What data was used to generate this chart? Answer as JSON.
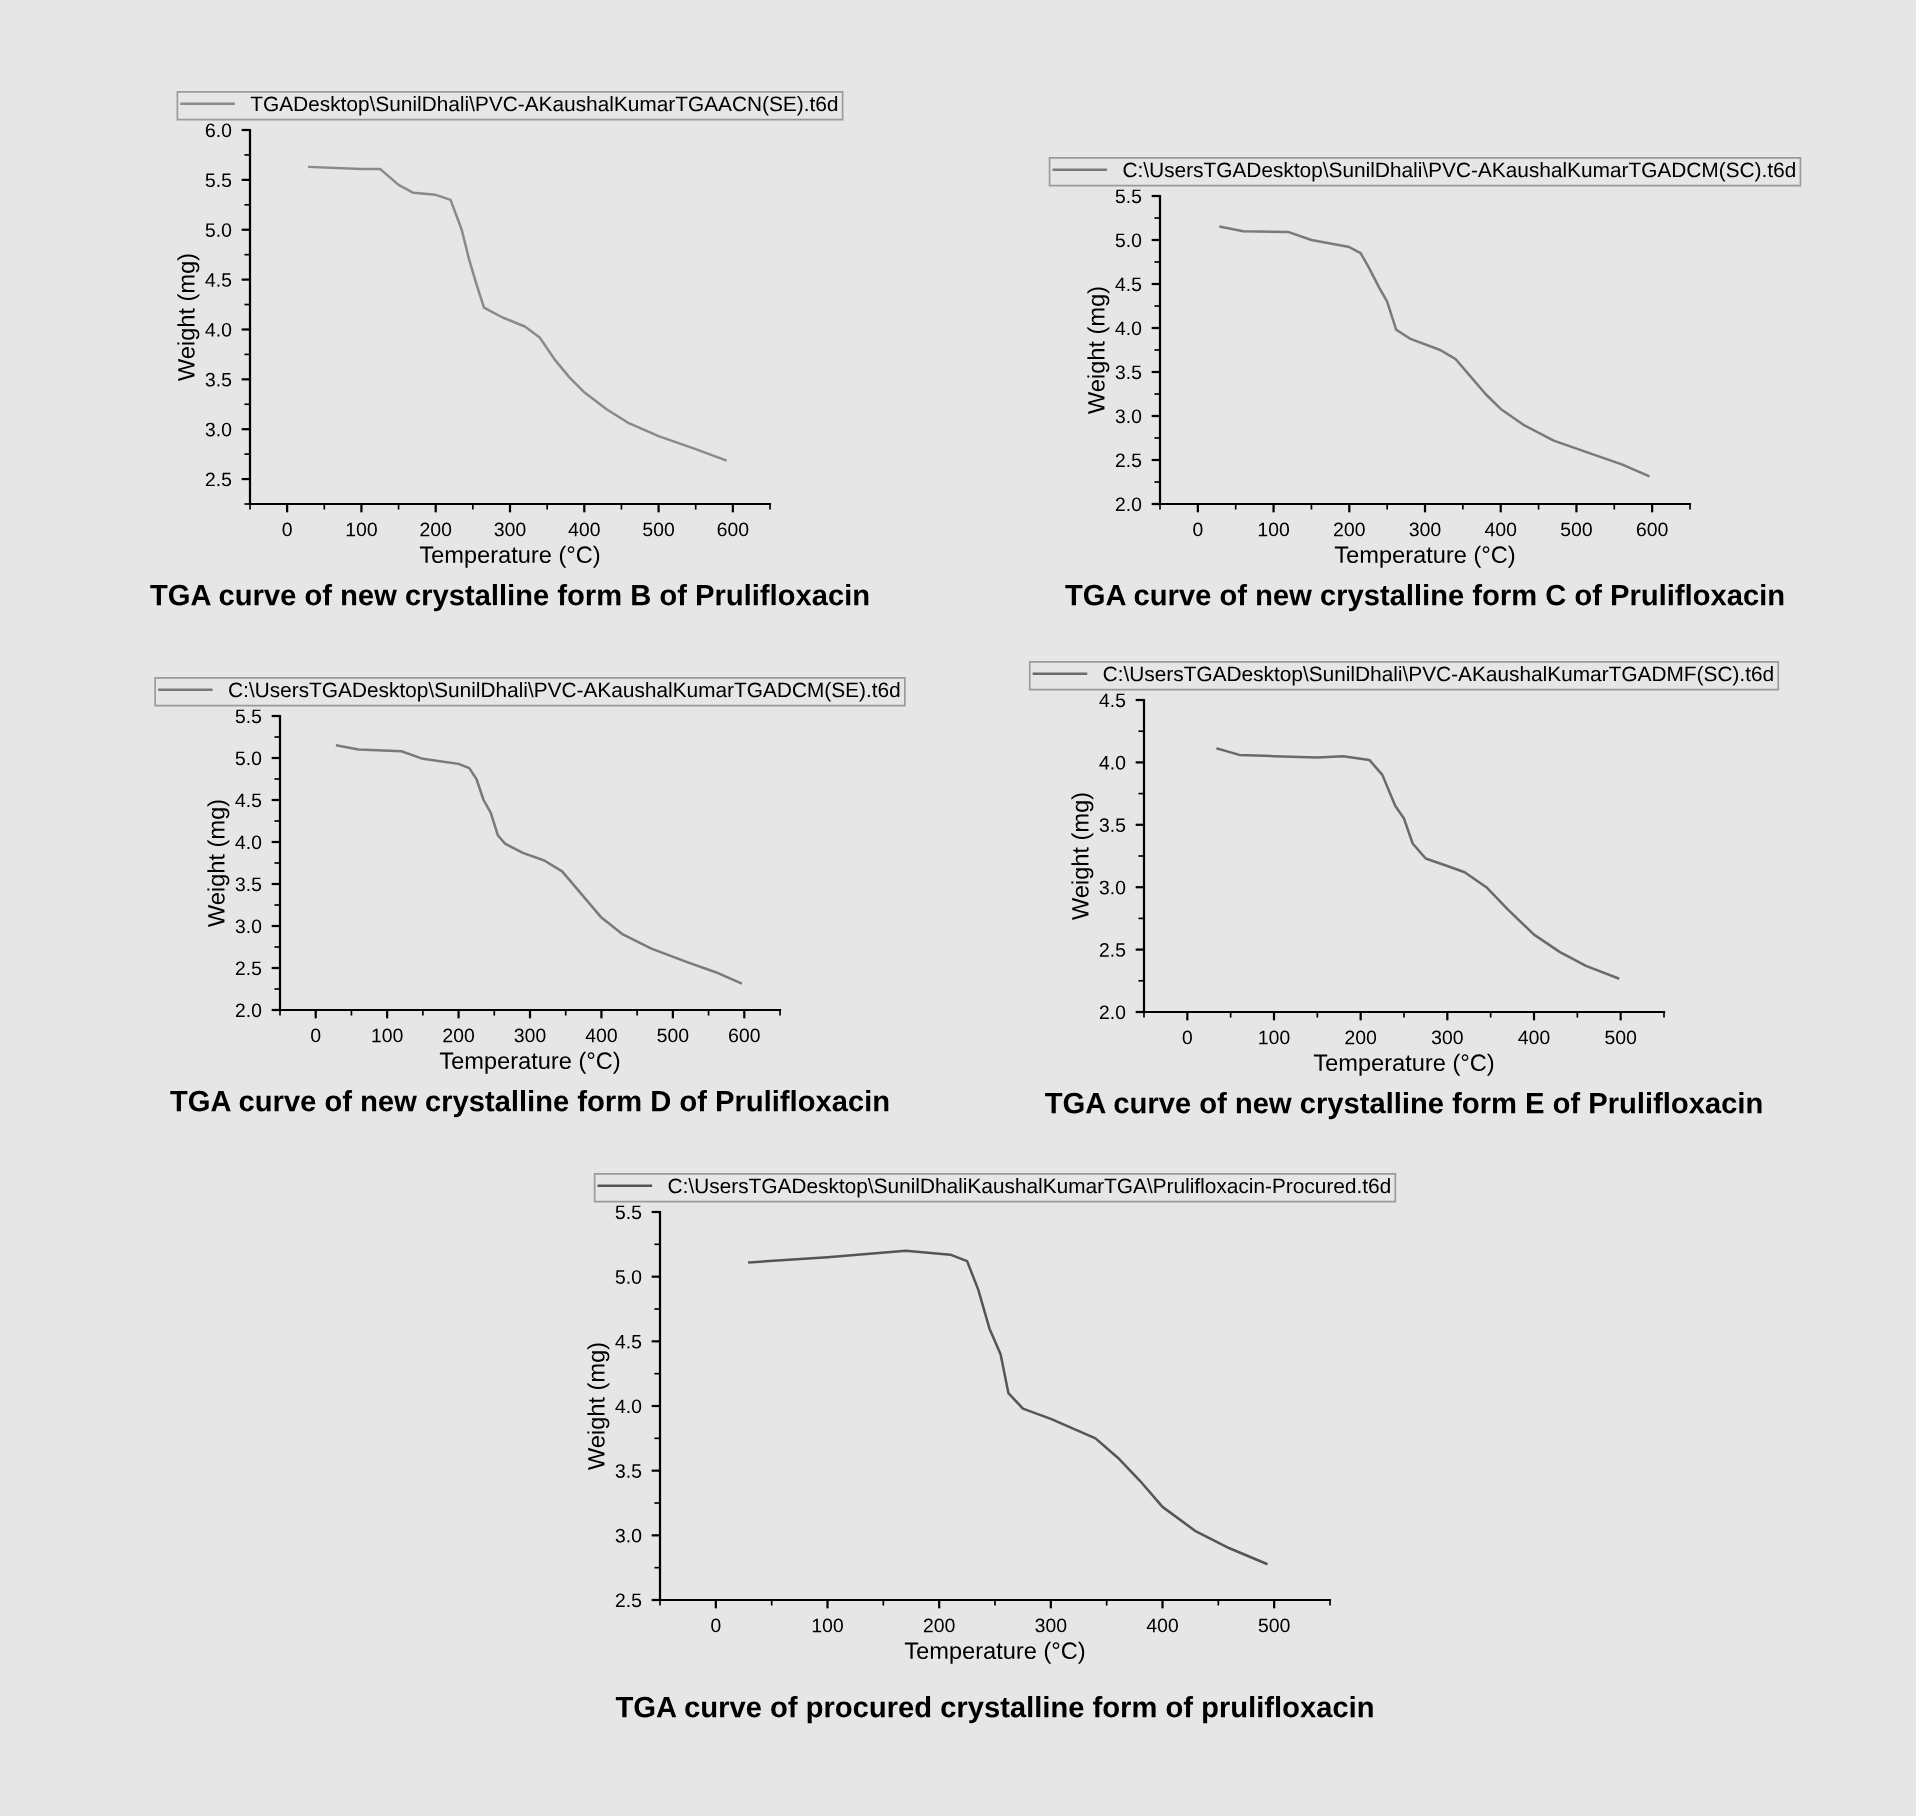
{
  "chart_data": [
    {
      "type": "line",
      "title": "TGA curve of new crystalline form B of Prulifloxacin",
      "xlabel": "Temperature (°C)",
      "ylabel": "Weight (mg)",
      "xlim": [
        -50,
        650
      ],
      "ylim": [
        2.25,
        6.0
      ],
      "xticks": [
        0,
        100,
        200,
        300,
        400,
        500,
        600
      ],
      "yticks": [
        2.5,
        {
          "value": 3,
          "label": "3.0"
        },
        3.5,
        {
          "value": 4,
          "label": "4.0"
        },
        4.5,
        {
          "value": 5,
          "label": "5.0"
        },
        5.5,
        {
          "value": 6,
          "label": "6.0"
        }
      ],
      "legend": "top",
      "grid": false,
      "series": [
        {
          "name": "TGADesktop\\SunilDhali\\PVC-AKaushalKumarTGAACN(SE).t6d",
          "color": "#8a8a8a",
          "x": [
            30,
            100,
            125,
            150,
            170,
            200,
            220,
            235,
            245,
            255,
            265,
            290,
            320,
            340,
            360,
            380,
            400,
            430,
            460,
            500,
            550,
            590
          ],
          "values": [
            5.63,
            5.61,
            5.61,
            5.45,
            5.37,
            5.35,
            5.3,
            5.0,
            4.7,
            4.45,
            4.22,
            4.12,
            4.03,
            3.92,
            3.7,
            3.52,
            3.37,
            3.2,
            3.06,
            2.93,
            2.8,
            2.69
          ]
        }
      ]
    },
    {
      "type": "line",
      "title": "TGA curve of new crystalline form C of Prulifloxacin",
      "xlabel": "Temperature (°C)",
      "ylabel": "Weight (mg)",
      "xlim": [
        -50,
        650
      ],
      "ylim": [
        2.0,
        5.5
      ],
      "xticks": [
        0,
        100,
        200,
        300,
        400,
        500,
        600
      ],
      "yticks": [
        {
          "value": 2,
          "label": "2.0"
        },
        2.5,
        {
          "value": 3,
          "label": "3.0"
        },
        3.5,
        {
          "value": 4,
          "label": "4.0"
        },
        4.5,
        {
          "value": 5,
          "label": "5.0"
        },
        5.5
      ],
      "legend": "top",
      "grid": false,
      "series": [
        {
          "name": "C:\\UsersTGADesktop\\SunilDhali\\PVC-AKaushalKumarTGADCM(SC).t6d",
          "color": "#7a7a7a",
          "x": [
            30,
            60,
            120,
            150,
            200,
            215,
            225,
            240,
            250,
            262,
            280,
            320,
            340,
            360,
            380,
            400,
            430,
            470,
            520,
            560,
            595
          ],
          "values": [
            5.15,
            5.1,
            5.09,
            5.0,
            4.92,
            4.85,
            4.7,
            4.45,
            4.3,
            3.98,
            3.88,
            3.75,
            3.65,
            3.45,
            3.25,
            3.08,
            2.9,
            2.72,
            2.57,
            2.45,
            2.32
          ]
        }
      ]
    },
    {
      "type": "line",
      "title": "TGA curve of new crystalline form D of Prulifloxacin",
      "xlabel": "Temperature (°C)",
      "ylabel": "Weight (mg)",
      "xlim": [
        -50,
        650
      ],
      "ylim": [
        2.0,
        5.5
      ],
      "xticks": [
        0,
        100,
        200,
        300,
        400,
        500,
        600
      ],
      "yticks": [
        {
          "value": 2,
          "label": "2.0"
        },
        2.5,
        {
          "value": 3,
          "label": "3.0"
        },
        3.5,
        {
          "value": 4,
          "label": "4.0"
        },
        4.5,
        {
          "value": 5,
          "label": "5.0"
        },
        5.5
      ],
      "legend": "top",
      "grid": false,
      "series": [
        {
          "name": "C:\\UsersTGADesktop\\SunilDhali\\PVC-AKaushalKumarTGADCM(SE).t6d",
          "color": "#7a7a7a",
          "x": [
            30,
            60,
            120,
            150,
            200,
            215,
            225,
            235,
            245,
            255,
            265,
            290,
            320,
            345,
            370,
            400,
            430,
            470,
            520,
            560,
            595
          ],
          "values": [
            5.15,
            5.1,
            5.08,
            4.99,
            4.93,
            4.88,
            4.75,
            4.5,
            4.35,
            4.08,
            3.98,
            3.87,
            3.78,
            3.65,
            3.4,
            3.1,
            2.9,
            2.73,
            2.57,
            2.45,
            2.32
          ]
        }
      ]
    },
    {
      "type": "line",
      "title": "TGA curve of new crystalline form E of Prulifloxacin",
      "xlabel": "Temperature (°C)",
      "ylabel": "Weight (mg)",
      "xlim": [
        -50,
        550
      ],
      "ylim": [
        2.0,
        4.5
      ],
      "xticks": [
        0,
        100,
        200,
        300,
        400,
        500
      ],
      "yticks": [
        {
          "value": 2,
          "label": "2.0"
        },
        2.5,
        {
          "value": 3,
          "label": "3.0"
        },
        3.5,
        {
          "value": 4,
          "label": "4.0"
        },
        4.5
      ],
      "legend": "top",
      "grid": false,
      "series": [
        {
          "name": "C:\\UsersTGADesktop\\SunilDhali\\PVC-AKaushalKumarTGADMF(SC).t6d",
          "color": "#6a6a6a",
          "x": [
            35,
            60,
            100,
            150,
            180,
            210,
            225,
            240,
            250,
            260,
            275,
            300,
            320,
            345,
            370,
            400,
            430,
            460,
            497
          ],
          "values": [
            4.11,
            4.06,
            4.05,
            4.04,
            4.05,
            4.02,
            3.9,
            3.65,
            3.55,
            3.35,
            3.23,
            3.17,
            3.12,
            3.0,
            2.82,
            2.62,
            2.48,
            2.37,
            2.27
          ]
        }
      ]
    },
    {
      "type": "line",
      "title": "TGA curve of procured crystalline form of prulifloxacin",
      "xlabel": "Temperature (°C)",
      "ylabel": "Weight (mg)",
      "xlim": [
        -50,
        550
      ],
      "ylim": [
        2.5,
        5.5
      ],
      "xticks": [
        0,
        100,
        200,
        300,
        400,
        500
      ],
      "yticks": [
        2.5,
        {
          "value": 3,
          "label": "3.0"
        },
        3.5,
        {
          "value": 4,
          "label": "4.0"
        },
        4.5,
        {
          "value": 5,
          "label": "5.0"
        },
        5.5
      ],
      "legend": "top",
      "grid": false,
      "series": [
        {
          "name": "C:\\UsersTGADesktop\\SunilDhaliKaushalKumarTGA\\Prulifloxacin-Procured.t6d",
          "color": "#555555",
          "x": [
            30,
            100,
            170,
            210,
            225,
            235,
            245,
            255,
            262,
            275,
            300,
            340,
            360,
            380,
            400,
            430,
            460,
            493
          ],
          "values": [
            5.11,
            5.15,
            5.2,
            5.17,
            5.12,
            4.9,
            4.6,
            4.4,
            4.1,
            3.98,
            3.9,
            3.75,
            3.6,
            3.42,
            3.22,
            3.03,
            2.9,
            2.78
          ]
        }
      ]
    }
  ]
}
